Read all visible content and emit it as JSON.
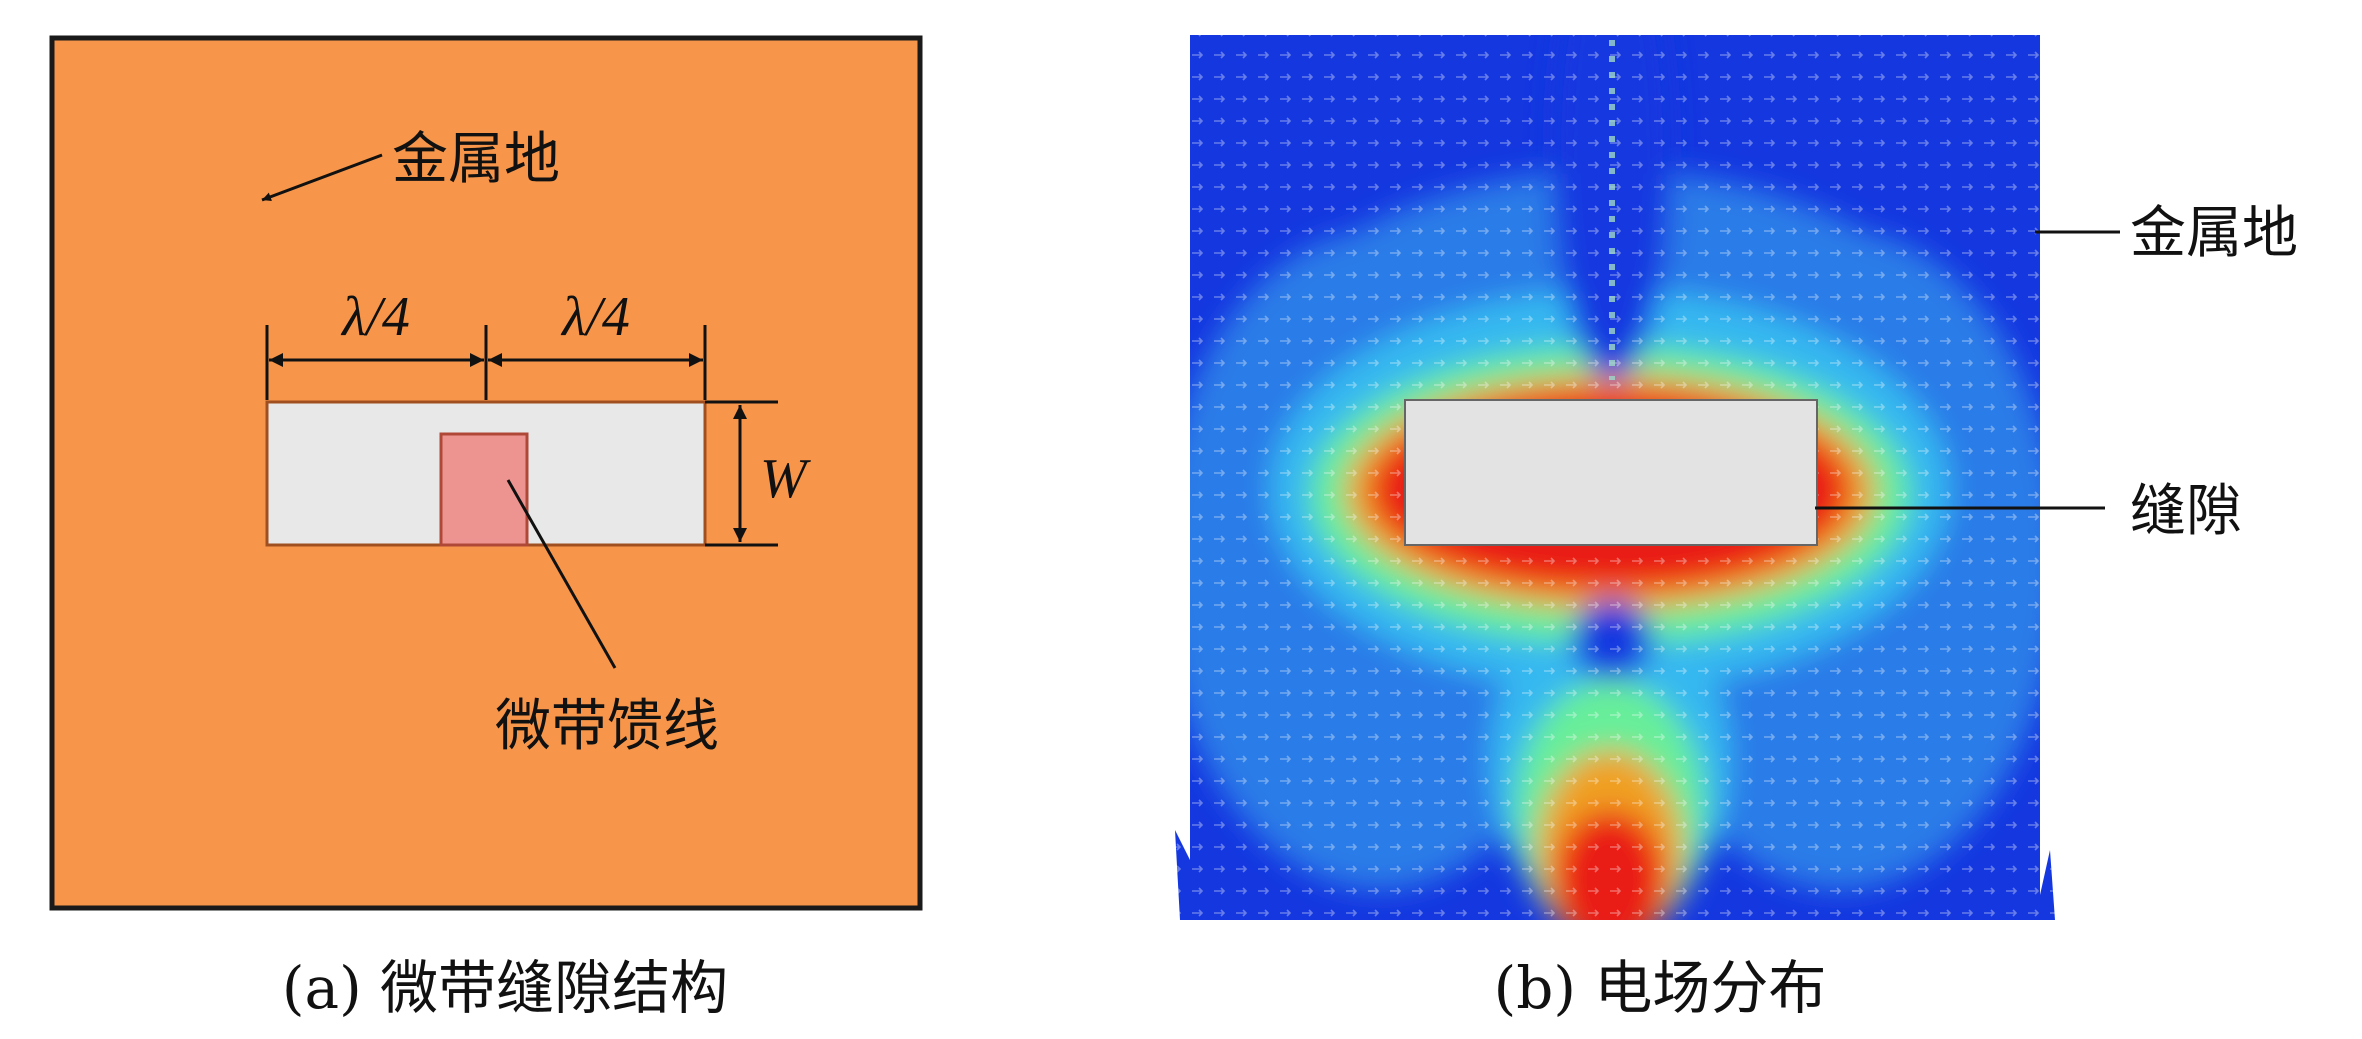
{
  "panel_a": {
    "caption": "(a) 微带缝隙结构",
    "ground_label": "金属地",
    "feed_label": "微带馈线",
    "dim_left": "λ/4",
    "dim_right": "λ/4",
    "dim_width": "W",
    "colors": {
      "ground": "#f7964a",
      "slot": "#e8e8e8",
      "feed": "#ee9490"
    }
  },
  "panel_b": {
    "caption": "(b) 电场分布",
    "ground_label": "金属地",
    "slot_label": "缝隙",
    "colormap": [
      "#1437e0",
      "#2b7be8",
      "#35b8f0",
      "#44e0ea",
      "#67ee9a",
      "#e5ee3a",
      "#f0a020",
      "#ea1b12"
    ]
  }
}
